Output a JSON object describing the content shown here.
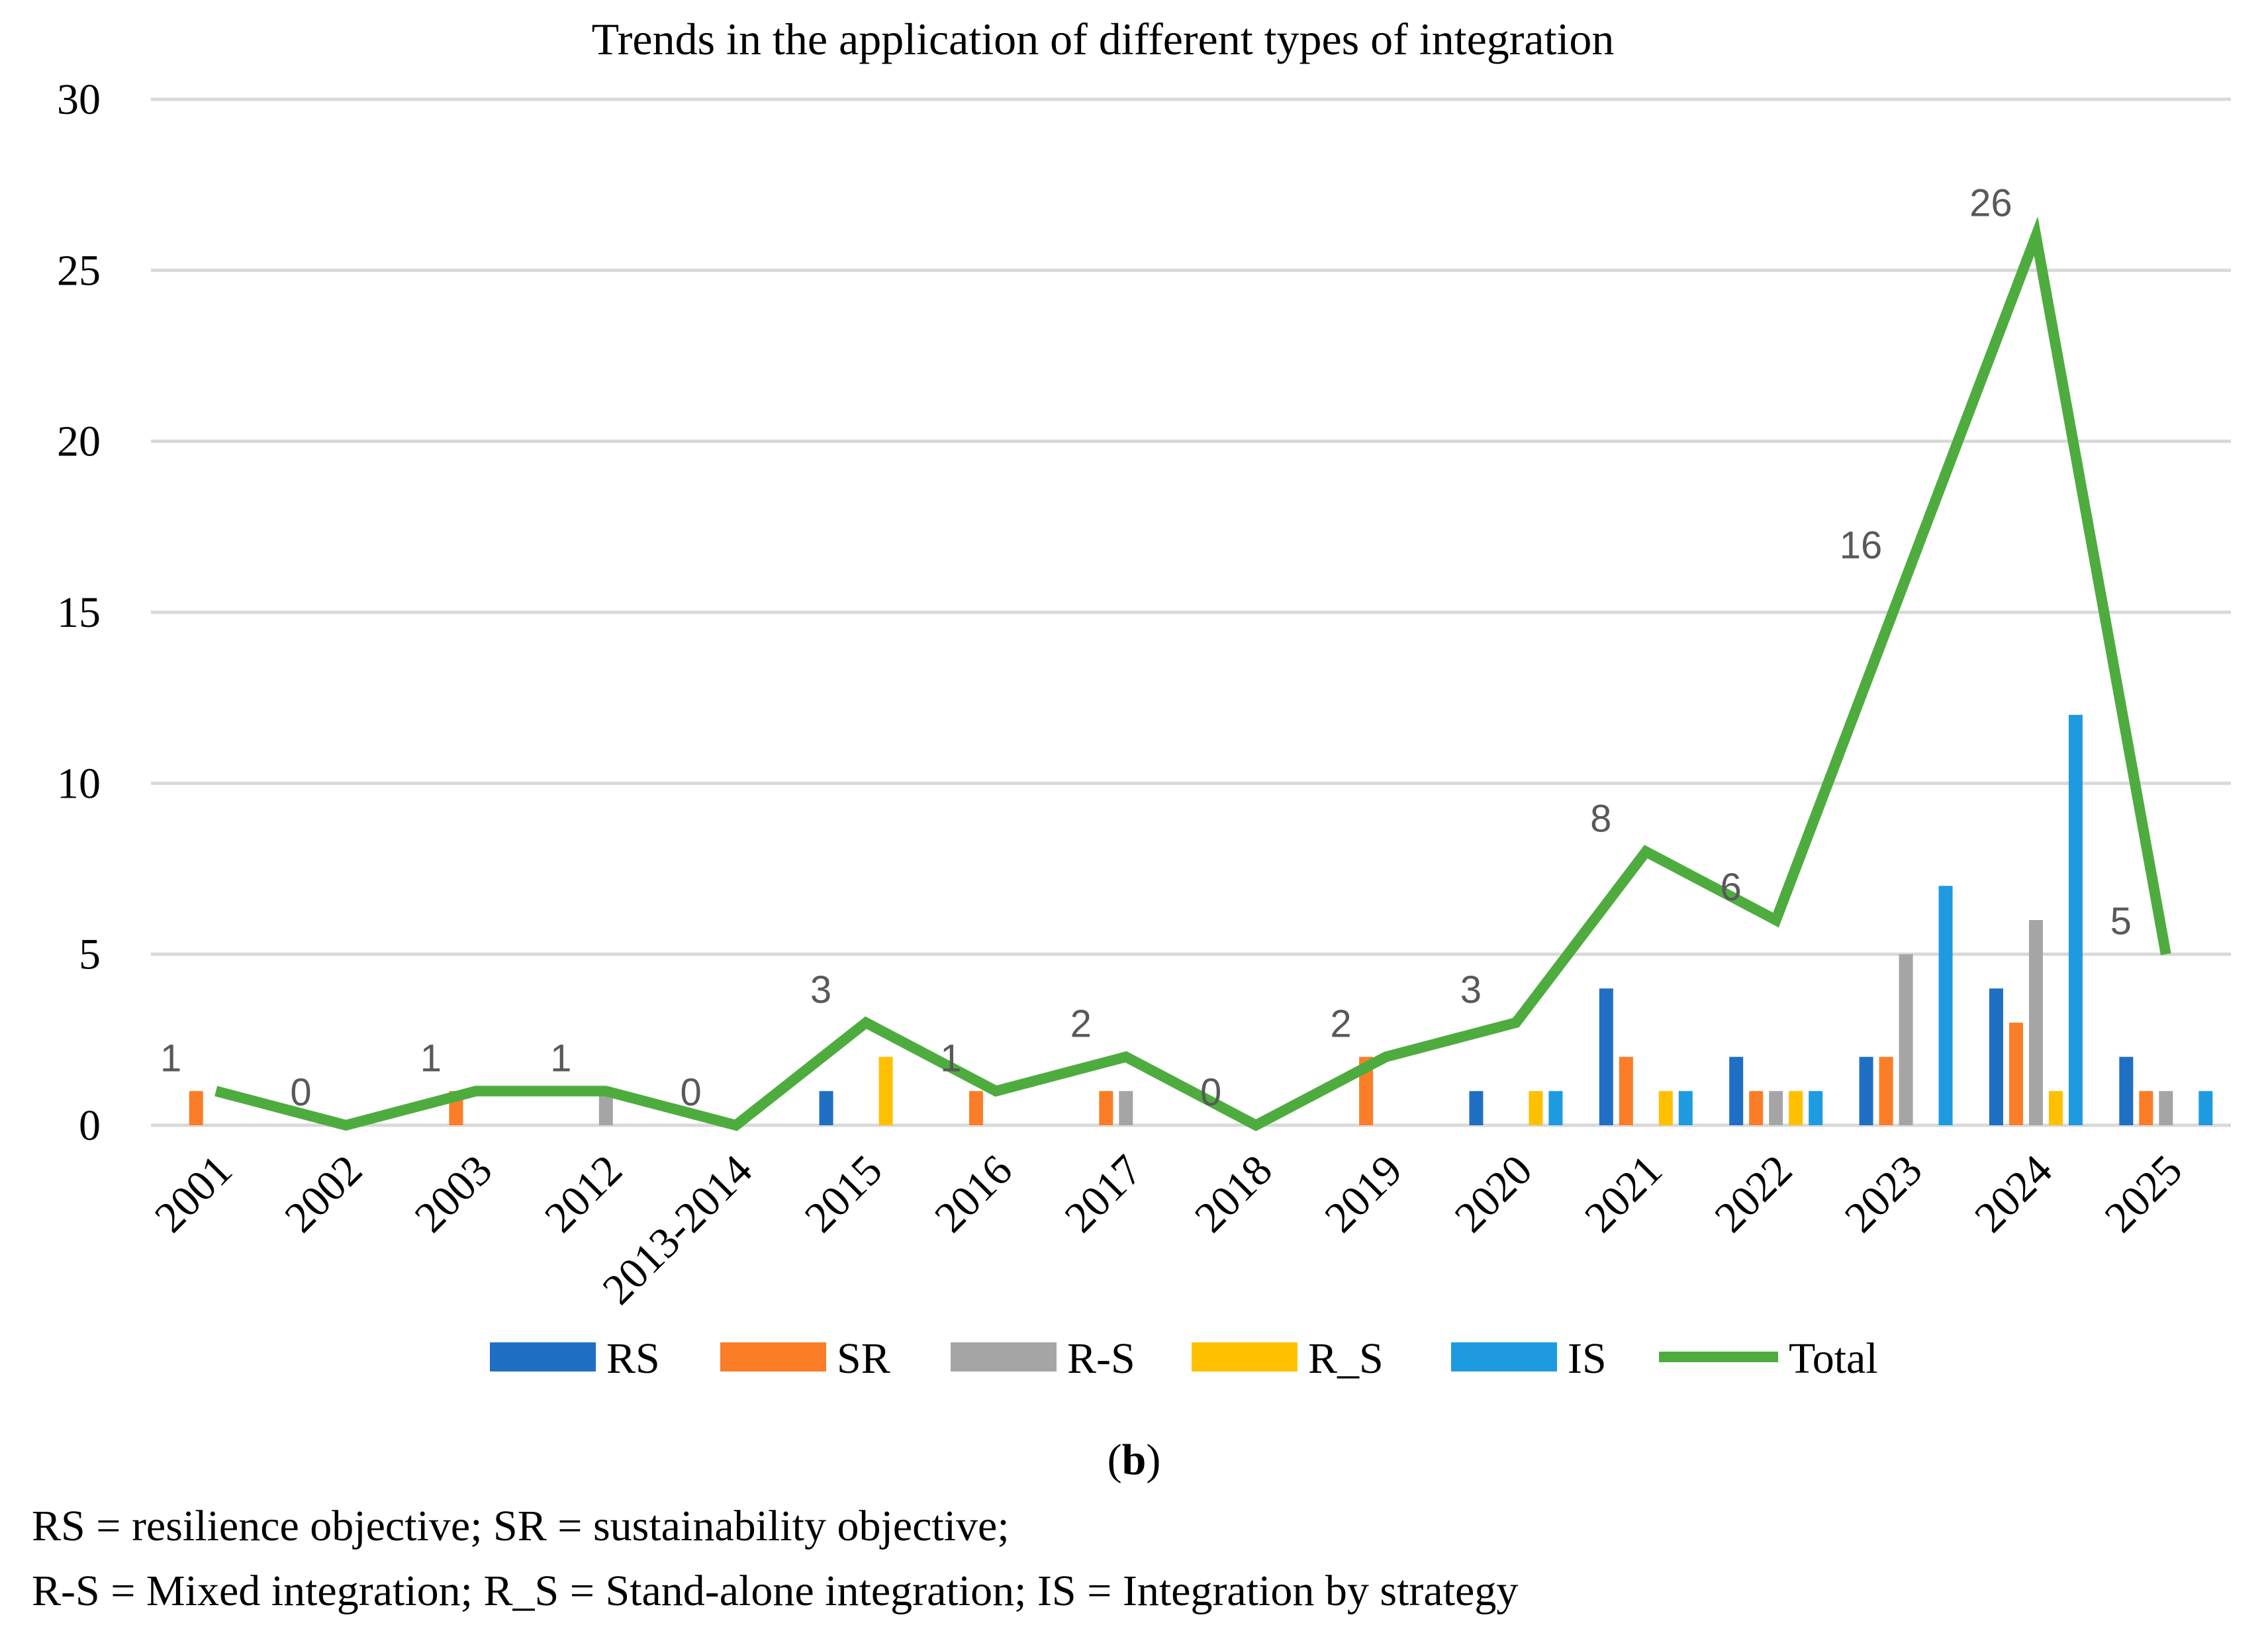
{
  "chart_data": {
    "type": "bar",
    "title": "Trends in the application of different types of integration",
    "xlabel": "",
    "ylabel": "",
    "ylim": [
      0,
      30
    ],
    "yticks": [
      "0",
      "5",
      "10",
      "15",
      "20",
      "25",
      "30"
    ],
    "categories": [
      "2001",
      "2002",
      "2003",
      "2012",
      "2013-2014",
      "2015",
      "2016",
      "2017",
      "2018",
      "2019",
      "2020",
      "2021",
      "2022",
      "2023",
      "2024",
      "2025"
    ],
    "series": [
      {
        "name": "RS",
        "color": "#1F6FC5",
        "values": [
          0,
          0,
          0,
          0,
          0,
          1,
          0,
          0,
          0,
          0,
          1,
          4,
          2,
          2,
          4,
          2
        ]
      },
      {
        "name": "SR",
        "color": "#FB7D28",
        "values": [
          1,
          0,
          1,
          0,
          0,
          0,
          1,
          1,
          0,
          2,
          0,
          2,
          1,
          2,
          3,
          1
        ]
      },
      {
        "name": "R-S",
        "color": "#A5A5A5",
        "values": [
          0,
          0,
          0,
          1,
          0,
          0,
          0,
          1,
          0,
          0,
          0,
          0,
          1,
          5,
          6,
          1
        ]
      },
      {
        "name": "R_S",
        "color": "#FFC000",
        "values": [
          0,
          0,
          0,
          0,
          0,
          2,
          0,
          0,
          0,
          0,
          1,
          1,
          1,
          0,
          1,
          0
        ]
      },
      {
        "name": "IS",
        "color": "#1E9BE0",
        "values": [
          0,
          0,
          0,
          0,
          0,
          0,
          0,
          0,
          0,
          0,
          1,
          1,
          1,
          7,
          12,
          1
        ]
      }
    ],
    "line": {
      "name": "Total",
      "color": "#4EAC3F",
      "values": [
        1,
        0,
        1,
        1,
        0,
        3,
        1,
        2,
        0,
        2,
        3,
        8,
        6,
        16,
        26,
        5
      ],
      "labels": [
        "1",
        "0",
        "1",
        "1",
        "0",
        "3",
        "1",
        "2",
        "0",
        "2",
        "3",
        "8",
        "6",
        "16",
        "26",
        "5"
      ]
    },
    "legend_position": "bottom",
    "grid": true
  },
  "figure_label": {
    "open": "(",
    "letter": "b",
    "close": ")"
  },
  "caption": {
    "line1": "RS = resilience objective; SR = sustainability objective;",
    "line2": "R-S = Mixed integration; R_S = Stand-alone integration; IS = Integration by strategy"
  }
}
